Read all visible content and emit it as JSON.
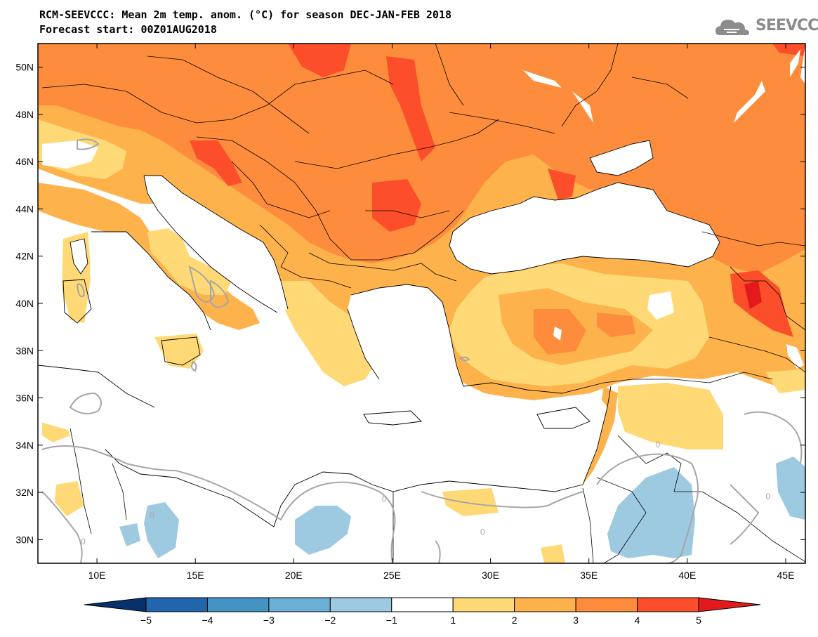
{
  "title": {
    "line1": "RCM-SEEVCCC: Mean 2m temp. anom. (°C) for season DEC-JAN-FEB 2018",
    "line2": "Forecast start: 00Z01AUG2018"
  },
  "logo": {
    "text": "SEEVCCC",
    "icon": "cloud-icon"
  },
  "map": {
    "lon_range": [
      7,
      46
    ],
    "lat_range": [
      29,
      51
    ],
    "lat_ticks": [
      {
        "value": 50,
        "label": "50N"
      },
      {
        "value": 48,
        "label": "48N"
      },
      {
        "value": 46,
        "label": "46N"
      },
      {
        "value": 44,
        "label": "44N"
      },
      {
        "value": 42,
        "label": "42N"
      },
      {
        "value": 40,
        "label": "40N"
      },
      {
        "value": 38,
        "label": "38N"
      },
      {
        "value": 36,
        "label": "36N"
      },
      {
        "value": 34,
        "label": "34N"
      },
      {
        "value": 32,
        "label": "32N"
      },
      {
        "value": 30,
        "label": "30N"
      }
    ],
    "lon_ticks": [
      {
        "value": 10,
        "label": "10E"
      },
      {
        "value": 15,
        "label": "15E"
      },
      {
        "value": 20,
        "label": "20E"
      },
      {
        "value": 25,
        "label": "25E"
      },
      {
        "value": 30,
        "label": "30E"
      },
      {
        "value": 35,
        "label": "35E"
      },
      {
        "value": 40,
        "label": "40E"
      },
      {
        "value": 45,
        "label": "45E"
      }
    ],
    "contour_labels": [
      {
        "lon": 9.3,
        "lat": 29.8,
        "text": "0"
      },
      {
        "lon": 12.8,
        "lat": 30.9,
        "text": "0"
      },
      {
        "lon": 24.6,
        "lat": 31.6,
        "text": "0"
      },
      {
        "lon": 29.6,
        "lat": 30.2,
        "text": "0"
      },
      {
        "lon": 38.5,
        "lat": 33.9,
        "text": "0"
      },
      {
        "lon": 44.1,
        "lat": 31.7,
        "text": "0"
      }
    ]
  },
  "colorbar": {
    "colors": [
      "#08306b",
      "#2166ac",
      "#4393c3",
      "#6baed6",
      "#9ecae1",
      "#ffffff",
      "#fed976",
      "#feb24c",
      "#fd8d3c",
      "#fc4e2a",
      "#e31a1c"
    ],
    "ticks": [
      "−5",
      "−4",
      "−3",
      "−2",
      "−1",
      "1",
      "2",
      "3",
      "4",
      "5"
    ]
  }
}
